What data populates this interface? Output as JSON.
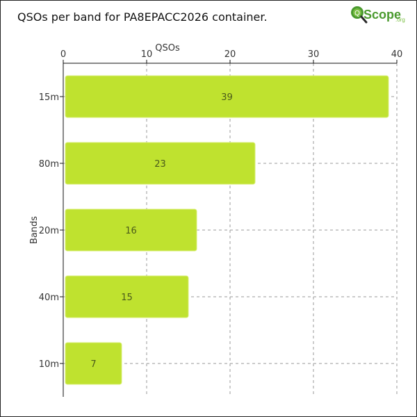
{
  "header": {
    "title": "QSOs per band for PA8EPACC2026 container."
  },
  "logo": {
    "main_text": "Scope",
    "suffix_text": ".org",
    "icon": "magnifier-icon",
    "colors": {
      "green": "#4a9a2e",
      "dark": "#2a2a2a"
    }
  },
  "colors": {
    "bar_fill": "#bfe22f",
    "bar_stroke": "#d9ef77",
    "grid": "#9a9a9a",
    "text": "#333333",
    "axis": "#111111"
  },
  "chart_data": {
    "type": "bar",
    "orientation": "horizontal",
    "title": "QSOs per band for PA8EPACC2026 container.",
    "xlabel": "QSOs",
    "ylabel": "Bands",
    "categories": [
      "15m",
      "80m",
      "20m",
      "40m",
      "10m"
    ],
    "values": [
      39,
      23,
      16,
      15,
      7
    ],
    "xlim": [
      0,
      40
    ],
    "x_ticks": [
      0,
      10,
      20,
      30,
      40
    ],
    "x_axis_position": "top",
    "grid": true,
    "grid_style": "dashed",
    "data_labels": true
  }
}
